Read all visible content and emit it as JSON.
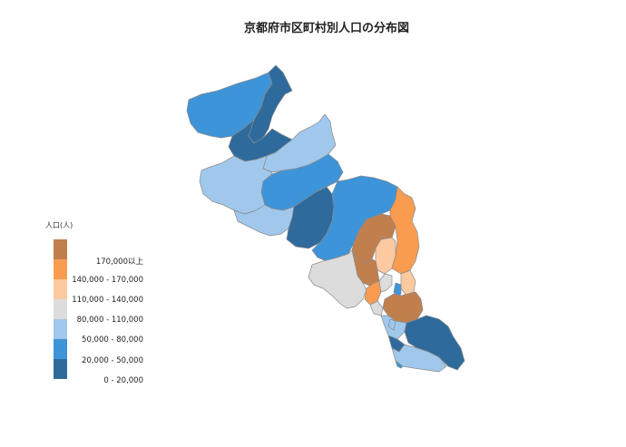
{
  "title": "京都府市区町村別人口の分布図",
  "legend": {
    "title": "人口(人)",
    "items": [
      {
        "label": "170,000以上",
        "color": "#c27f4e"
      },
      {
        "label": "140,000 - 170,000",
        "color": "#f99c50"
      },
      {
        "label": "110,000 - 140,000",
        "color": "#fdc9a0"
      },
      {
        "label": "80,000 - 110,000",
        "color": "#dcdcdc"
      },
      {
        "label": "50,000 - 80,000",
        "color": "#a0c8ec"
      },
      {
        "label": "20,000 - 50,000",
        "color": "#3e94d8"
      },
      {
        "label": "0 - 20,000",
        "color": "#2e6b9c"
      }
    ]
  },
  "colors": {
    "border": "#8a8a8a",
    "background": "#ffffff"
  }
}
